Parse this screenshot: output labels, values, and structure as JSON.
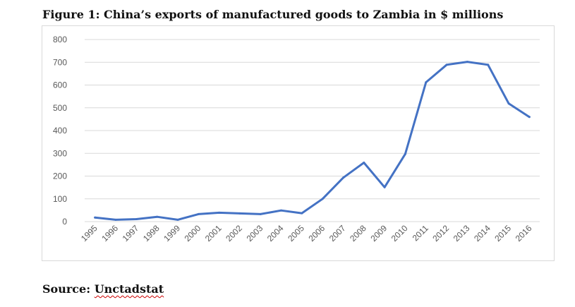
{
  "figure": {
    "title": "Figure 1: China’s exports of manufactured goods to Zambia in $ millions"
  },
  "source": {
    "prefix": "Source:",
    "name": "Unctadstat"
  },
  "chart_data": {
    "type": "line",
    "title": "Figure 1: China’s exports of manufactured goods to Zambia in $ millions",
    "xlabel": "",
    "ylabel": "",
    "ylim": [
      0,
      800
    ],
    "yticks": [
      0,
      100,
      200,
      300,
      400,
      500,
      600,
      700,
      800
    ],
    "grid": true,
    "legend": "none",
    "line_color": "#4472c4",
    "categories": [
      "1995",
      "1996",
      "1997",
      "1998",
      "1999",
      "2000",
      "2001",
      "2002",
      "2003",
      "2004",
      "2005",
      "2006",
      "2007",
      "2008",
      "2009",
      "2010",
      "2011",
      "2012",
      "2013",
      "2014",
      "2015",
      "2016"
    ],
    "series": [
      {
        "values": [
          18,
          8,
          11,
          21,
          8,
          33,
          39,
          36,
          33,
          49,
          37,
          100,
          193,
          259,
          151,
          297,
          612,
          689,
          702,
          689,
          519,
          460
        ]
      }
    ]
  }
}
